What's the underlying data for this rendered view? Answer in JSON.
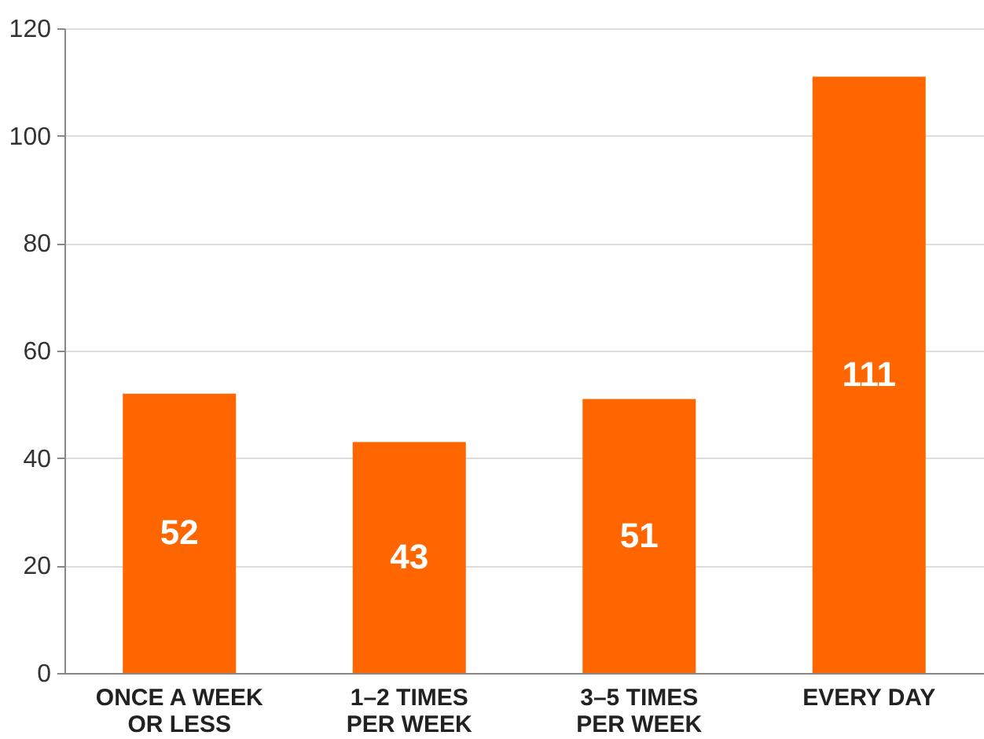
{
  "chart_data": {
    "type": "bar",
    "categories": [
      "ONCE A WEEK\nOR LESS",
      "1–2 TIMES\nPER WEEK",
      "3–5 TIMES\nPER WEEK",
      "EVERY DAY"
    ],
    "values": [
      52,
      43,
      51,
      111
    ],
    "color": "#ff6600",
    "ylim": [
      0,
      120
    ],
    "yticks": [
      0,
      20,
      40,
      60,
      80,
      100,
      120
    ],
    "grid": "y",
    "data_labels": true
  }
}
